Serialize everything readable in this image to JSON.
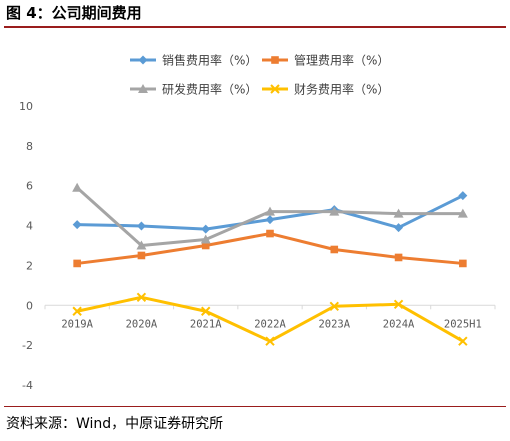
{
  "figure": {
    "title": "图 4：公司期间费用",
    "source": "资料来源：Wind，中原证券研究所"
  },
  "colors": {
    "rule": "#9a1d1d",
    "axis": "#d9d9d9",
    "tick_text": "#595959"
  },
  "chart_data": {
    "type": "line",
    "categories": [
      "2019A",
      "2020A",
      "2021A",
      "2022A",
      "2023A",
      "2024A",
      "2025H1"
    ],
    "ylim": [
      -4,
      10
    ],
    "yticks": [
      "-4",
      "-2",
      "0",
      "2",
      "4",
      "6",
      "8",
      "10"
    ],
    "grid": false,
    "legend_position": "top",
    "series": [
      {
        "name": "销售费用率（%）",
        "color": "#5b9bd5",
        "marker": "diamond",
        "values": [
          4.05,
          3.98,
          3.82,
          4.3,
          4.8,
          3.9,
          5.5
        ]
      },
      {
        "name": "管理费用率（%）",
        "color": "#ed7d31",
        "marker": "square",
        "values": [
          2.1,
          2.5,
          3.0,
          3.6,
          2.8,
          2.4,
          2.1
        ]
      },
      {
        "name": "研发费用率（%）",
        "color": "#a5a5a5",
        "marker": "triangle",
        "values": [
          5.9,
          3.0,
          3.3,
          4.7,
          4.7,
          4.6,
          4.6
        ]
      },
      {
        "name": "财务费用率（%）",
        "color": "#ffc000",
        "marker": "x",
        "values": [
          -0.3,
          0.4,
          -0.3,
          -1.8,
          -0.05,
          0.05,
          -1.8
        ]
      }
    ]
  }
}
